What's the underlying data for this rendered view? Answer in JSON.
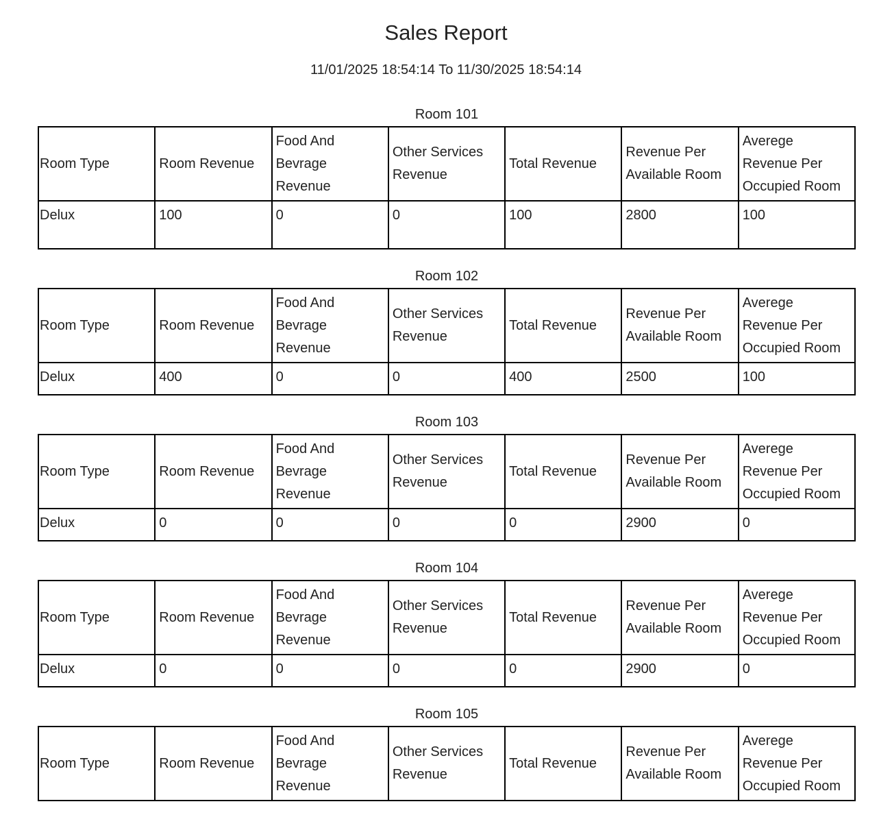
{
  "report": {
    "title": "Sales Report",
    "date_range": "11/01/2025 18:54:14 To 11/30/2025 18:54:14"
  },
  "headers": [
    "Room Type",
    "Room Revenue",
    "Food And Bevrage Revenue",
    "Other Services Revenue",
    "Total Revenue",
    "Revenue Per Available Room",
    "Averege Revenue Per Occupied Room"
  ],
  "rooms": [
    {
      "caption": "Room 101",
      "row": [
        "Delux",
        "100",
        "0",
        "0",
        "100",
        "2800",
        "100"
      ]
    },
    {
      "caption": "Room 102",
      "row": [
        "Delux",
        "400",
        "0",
        "0",
        "400",
        "2500",
        "100"
      ]
    },
    {
      "caption": "Room 103",
      "row": [
        "Delux",
        "0",
        "0",
        "0",
        "0",
        "2900",
        "0"
      ]
    },
    {
      "caption": "Room 104",
      "row": [
        "Delux",
        "0",
        "0",
        "0",
        "0",
        "2900",
        "0"
      ]
    },
    {
      "caption": "Room 105",
      "row": []
    }
  ]
}
